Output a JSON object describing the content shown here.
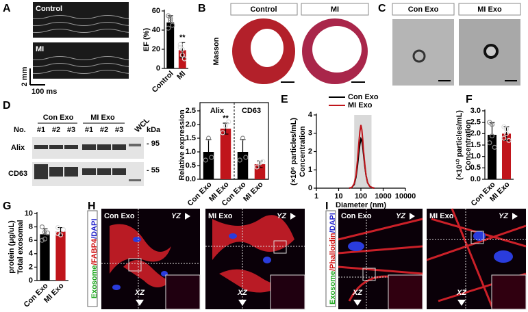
{
  "panel_labels": [
    "A",
    "B",
    "C",
    "D",
    "E",
    "F",
    "G",
    "H",
    "I"
  ],
  "panel_a": {
    "images": [
      "Control",
      "MI"
    ],
    "scale_bar_y": "2 mm",
    "scale_bar_x": "100 ms"
  },
  "panel_b": {
    "columns": [
      "Control",
      "MI"
    ],
    "row": "Masson"
  },
  "panel_c": {
    "columns": [
      "Con Exo",
      "MI Exo"
    ]
  },
  "panel_d_blot": {
    "groups": [
      "Con Exo",
      "MI Exo"
    ],
    "lane_header": "No.",
    "lanes": [
      "#1",
      "#2",
      "#3",
      "#1",
      "#2",
      "#3",
      "WCL"
    ],
    "size_unit": "kDa",
    "rows": [
      "Alix",
      "CD63"
    ],
    "size_markers": [
      "- 95",
      "- 55"
    ]
  },
  "panel_h": {
    "stain": [
      "Exosome",
      "/FABP4",
      "/DAPI"
    ],
    "images": [
      "Con Exo",
      "MI Exo"
    ],
    "views": [
      "YZ",
      "XZ"
    ]
  },
  "panel_i": {
    "stain": [
      "Exosome",
      "/Phalloidin",
      "/DAPI"
    ],
    "images": [
      "Con Exo",
      "MI Exo"
    ],
    "views": [
      "YZ",
      "XZ"
    ]
  },
  "chart_data": [
    {
      "type": "bar",
      "ylabel": [
        "EF (%)"
      ],
      "categories": [
        "Control",
        "MI"
      ],
      "values": [
        48,
        19
      ],
      "errors": [
        7,
        8
      ],
      "points": [
        [
          55,
          50,
          45,
          42,
          52
        ],
        [
          25,
          14,
          10,
          22,
          20
        ]
      ],
      "colors": [
        "#000000",
        "#c0151b"
      ],
      "significance": [
        null,
        "**"
      ],
      "ylim": [
        0,
        60
      ],
      "yticks": [
        0,
        20,
        40,
        60
      ]
    },
    {
      "type": "bar",
      "ylabel": [
        "Relative expression"
      ],
      "groups": [
        "Alix",
        "CD63"
      ],
      "categories": [
        "Con Exo",
        "MI Exo",
        "Con Exo",
        "MI Exo"
      ],
      "values": [
        1.0,
        1.85,
        1.0,
        0.55
      ],
      "errors": [
        0.45,
        0.2,
        0.45,
        0.12
      ],
      "points": [
        [
          0.7,
          1.5,
          0.8
        ],
        [
          1.7,
          1.95,
          2.1
        ],
        [
          0.7,
          1.5,
          0.8
        ],
        [
          0.45,
          0.6,
          0.65
        ]
      ],
      "colors": [
        "#000000",
        "#c0151b",
        "#000000",
        "#c0151b"
      ],
      "significance": [
        null,
        "**",
        null,
        null
      ],
      "ylim": [
        0,
        2.5
      ],
      "yticks": [
        {
          "value": 0,
          "label": "0.0"
        },
        0.5,
        {
          "value": 1,
          "label": "1.0"
        },
        1.5,
        {
          "value": 2,
          "label": "2.0"
        },
        2.5
      ]
    },
    {
      "type": "line",
      "ylabel": [
        "Concentration",
        "(×10⁶ particles/mL)"
      ],
      "xlabel": "Diameter (nm)",
      "xlog": true,
      "x": [
        30,
        40,
        50,
        60,
        70,
        80,
        90,
        100,
        110,
        120,
        130,
        150,
        170,
        200,
        250,
        300,
        400
      ],
      "highlight": [
        50,
        300
      ],
      "series": [
        {
          "name": "Con Exo",
          "color": "#000000",
          "values": [
            0,
            0.05,
            0.2,
            0.6,
            1.2,
            1.9,
            2.4,
            2.7,
            2.6,
            2.3,
            1.9,
            1.2,
            0.7,
            0.3,
            0.1,
            0.05,
            0
          ]
        },
        {
          "name": "MI Exo",
          "color": "#c0151b",
          "values": [
            0,
            0.05,
            0.25,
            0.7,
            1.5,
            2.4,
            3.1,
            3.45,
            3.2,
            2.7,
            2.1,
            1.3,
            0.7,
            0.3,
            0.1,
            0.05,
            0
          ]
        }
      ],
      "xlim": [
        1,
        10000
      ],
      "xticks": [
        1,
        10,
        100,
        1000,
        10000
      ],
      "ylim": [
        0,
        4
      ],
      "yticks": [
        0,
        1,
        2,
        3,
        4
      ]
    },
    {
      "type": "bar",
      "ylabel": [
        "Concentration",
        "(×10¹⁰ particles/mL)"
      ],
      "categories": [
        "Con Exo",
        "MI Exo"
      ],
      "values": [
        1.95,
        2.0
      ],
      "errors": [
        0.55,
        0.3
      ],
      "points": [
        [
          2.5,
          2.4,
          1.4,
          1.6,
          1.9
        ],
        [
          2.3,
          2.2,
          1.7,
          1.8,
          2.0
        ]
      ],
      "colors": [
        "#000000",
        "#c0151b"
      ],
      "ylim": [
        0,
        3
      ],
      "yticks": [
        {
          "value": 0,
          "label": "0.0"
        },
        0.5,
        {
          "value": 1,
          "label": "1.0"
        },
        1.5,
        {
          "value": 2,
          "label": "2.0"
        },
        2.5,
        {
          "value": 3,
          "label": "3.0"
        }
      ]
    },
    {
      "type": "bar",
      "ylabel": [
        "Total exosomal",
        "protein (μg/uL)"
      ],
      "categories": [
        "Con Exo",
        "MI Exo"
      ],
      "values": [
        6.9,
        7.3
      ],
      "errors": [
        0.8,
        0.6
      ],
      "points": [
        [
          8.0,
          6.2,
          7.1,
          6.0,
          7.2
        ],
        [
          7.9,
          6.8,
          7.6,
          7.0
        ]
      ],
      "colors": [
        "#000000",
        "#c0151b"
      ],
      "ylim": [
        0,
        10
      ],
      "yticks": [
        0,
        2,
        4,
        6,
        8,
        10
      ]
    }
  ]
}
